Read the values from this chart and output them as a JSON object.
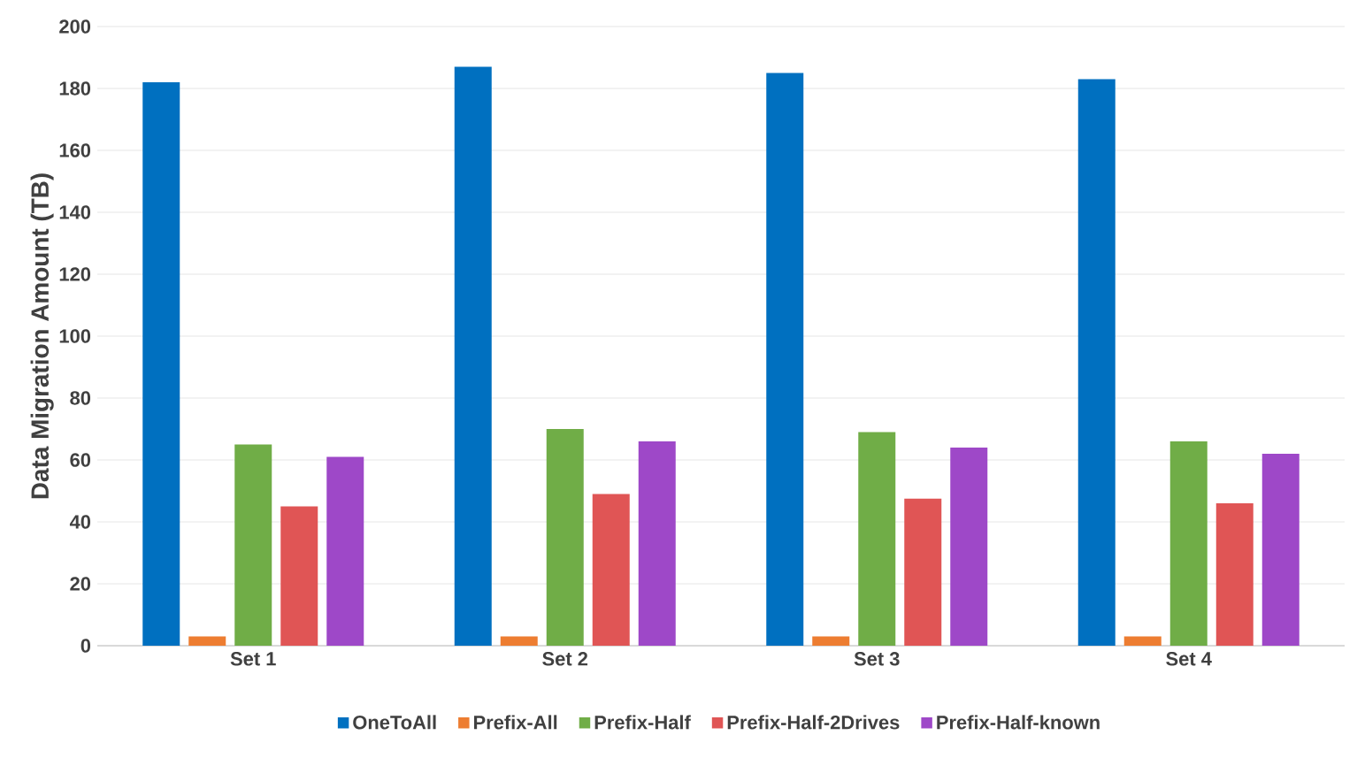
{
  "chart_data": {
    "type": "bar",
    "ylabel": "Data Migration Amount (TB)",
    "categories": [
      "Set 1",
      "Set 2",
      "Set 3",
      "Set 4"
    ],
    "series": [
      {
        "name": "OneToAll",
        "color": "#0070c0",
        "values": [
          182,
          187,
          185,
          183
        ]
      },
      {
        "name": "Prefix-All",
        "color": "#ed7d31",
        "values": [
          3,
          3,
          3,
          3
        ]
      },
      {
        "name": "Prefix-Half",
        "color": "#70ad47",
        "values": [
          65,
          70,
          69,
          66
        ]
      },
      {
        "name": "Prefix-Half-2Drives",
        "color": "#e05555",
        "values": [
          45,
          49,
          47.5,
          46
        ]
      },
      {
        "name": "Prefix-Half-known",
        "color": "#9e48c8",
        "values": [
          61,
          66,
          64,
          62
        ]
      }
    ],
    "ylim": [
      0,
      200
    ],
    "yticks": [
      0,
      20,
      40,
      60,
      80,
      100,
      120,
      140,
      160,
      180,
      200
    ],
    "grid": "y",
    "legend": "bottom"
  }
}
